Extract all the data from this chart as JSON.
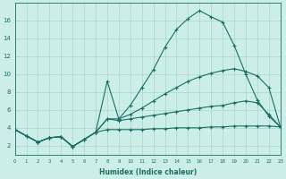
{
  "xlabel": "Humidex (Indice chaleur)",
  "bg_color": "#cceee8",
  "grid_color": "#aad4cc",
  "line_color": "#1a6e64",
  "xlim": [
    0,
    23
  ],
  "ylim": [
    1,
    18
  ],
  "xticks": [
    0,
    1,
    2,
    3,
    4,
    5,
    6,
    7,
    8,
    9,
    10,
    11,
    12,
    13,
    14,
    15,
    16,
    17,
    18,
    19,
    20,
    21,
    22,
    23
  ],
  "yticks": [
    2,
    4,
    6,
    8,
    10,
    12,
    14,
    16
  ],
  "lines": [
    {
      "x": [
        0,
        1,
        2,
        3,
        4,
        5,
        6,
        7,
        8,
        9,
        10,
        11,
        12,
        13,
        14,
        15,
        16,
        17,
        18,
        19,
        20,
        21,
        22,
        23
      ],
      "y": [
        3.8,
        3.1,
        2.4,
        2.9,
        3.0,
        1.9,
        2.7,
        3.5,
        9.2,
        5.0,
        6.5,
        8.5,
        10.5,
        13.0,
        15.0,
        16.2,
        17.1,
        16.4,
        15.8,
        13.2,
        10.0,
        7.1,
        5.3,
        4.1
      ]
    },
    {
      "x": [
        0,
        1,
        2,
        3,
        4,
        5,
        6,
        7,
        8,
        9,
        10,
        11,
        12,
        13,
        14,
        15,
        16,
        17,
        18,
        19,
        20,
        21,
        22,
        23
      ],
      "y": [
        3.8,
        3.1,
        2.4,
        2.9,
        3.0,
        1.9,
        2.7,
        3.5,
        5.0,
        5.0,
        5.5,
        6.2,
        7.0,
        7.8,
        8.5,
        9.2,
        9.7,
        10.1,
        10.4,
        10.6,
        10.3,
        9.8,
        8.5,
        4.1
      ]
    },
    {
      "x": [
        0,
        1,
        2,
        3,
        4,
        5,
        6,
        7,
        8,
        9,
        10,
        11,
        12,
        13,
        14,
        15,
        16,
        17,
        18,
        19,
        20,
        21,
        22,
        23
      ],
      "y": [
        3.8,
        3.1,
        2.4,
        2.9,
        3.0,
        1.9,
        2.7,
        3.5,
        5.0,
        4.8,
        5.0,
        5.2,
        5.4,
        5.6,
        5.8,
        6.0,
        6.2,
        6.4,
        6.5,
        6.8,
        7.0,
        6.8,
        5.5,
        4.1
      ]
    },
    {
      "x": [
        0,
        1,
        2,
        3,
        4,
        5,
        6,
        7,
        8,
        9,
        10,
        11,
        12,
        13,
        14,
        15,
        16,
        17,
        18,
        19,
        20,
        21,
        22,
        23
      ],
      "y": [
        3.8,
        3.1,
        2.4,
        2.9,
        3.0,
        1.9,
        2.7,
        3.5,
        3.8,
        3.8,
        3.8,
        3.8,
        3.9,
        3.9,
        4.0,
        4.0,
        4.0,
        4.1,
        4.1,
        4.2,
        4.2,
        4.2,
        4.2,
        4.1
      ]
    }
  ]
}
